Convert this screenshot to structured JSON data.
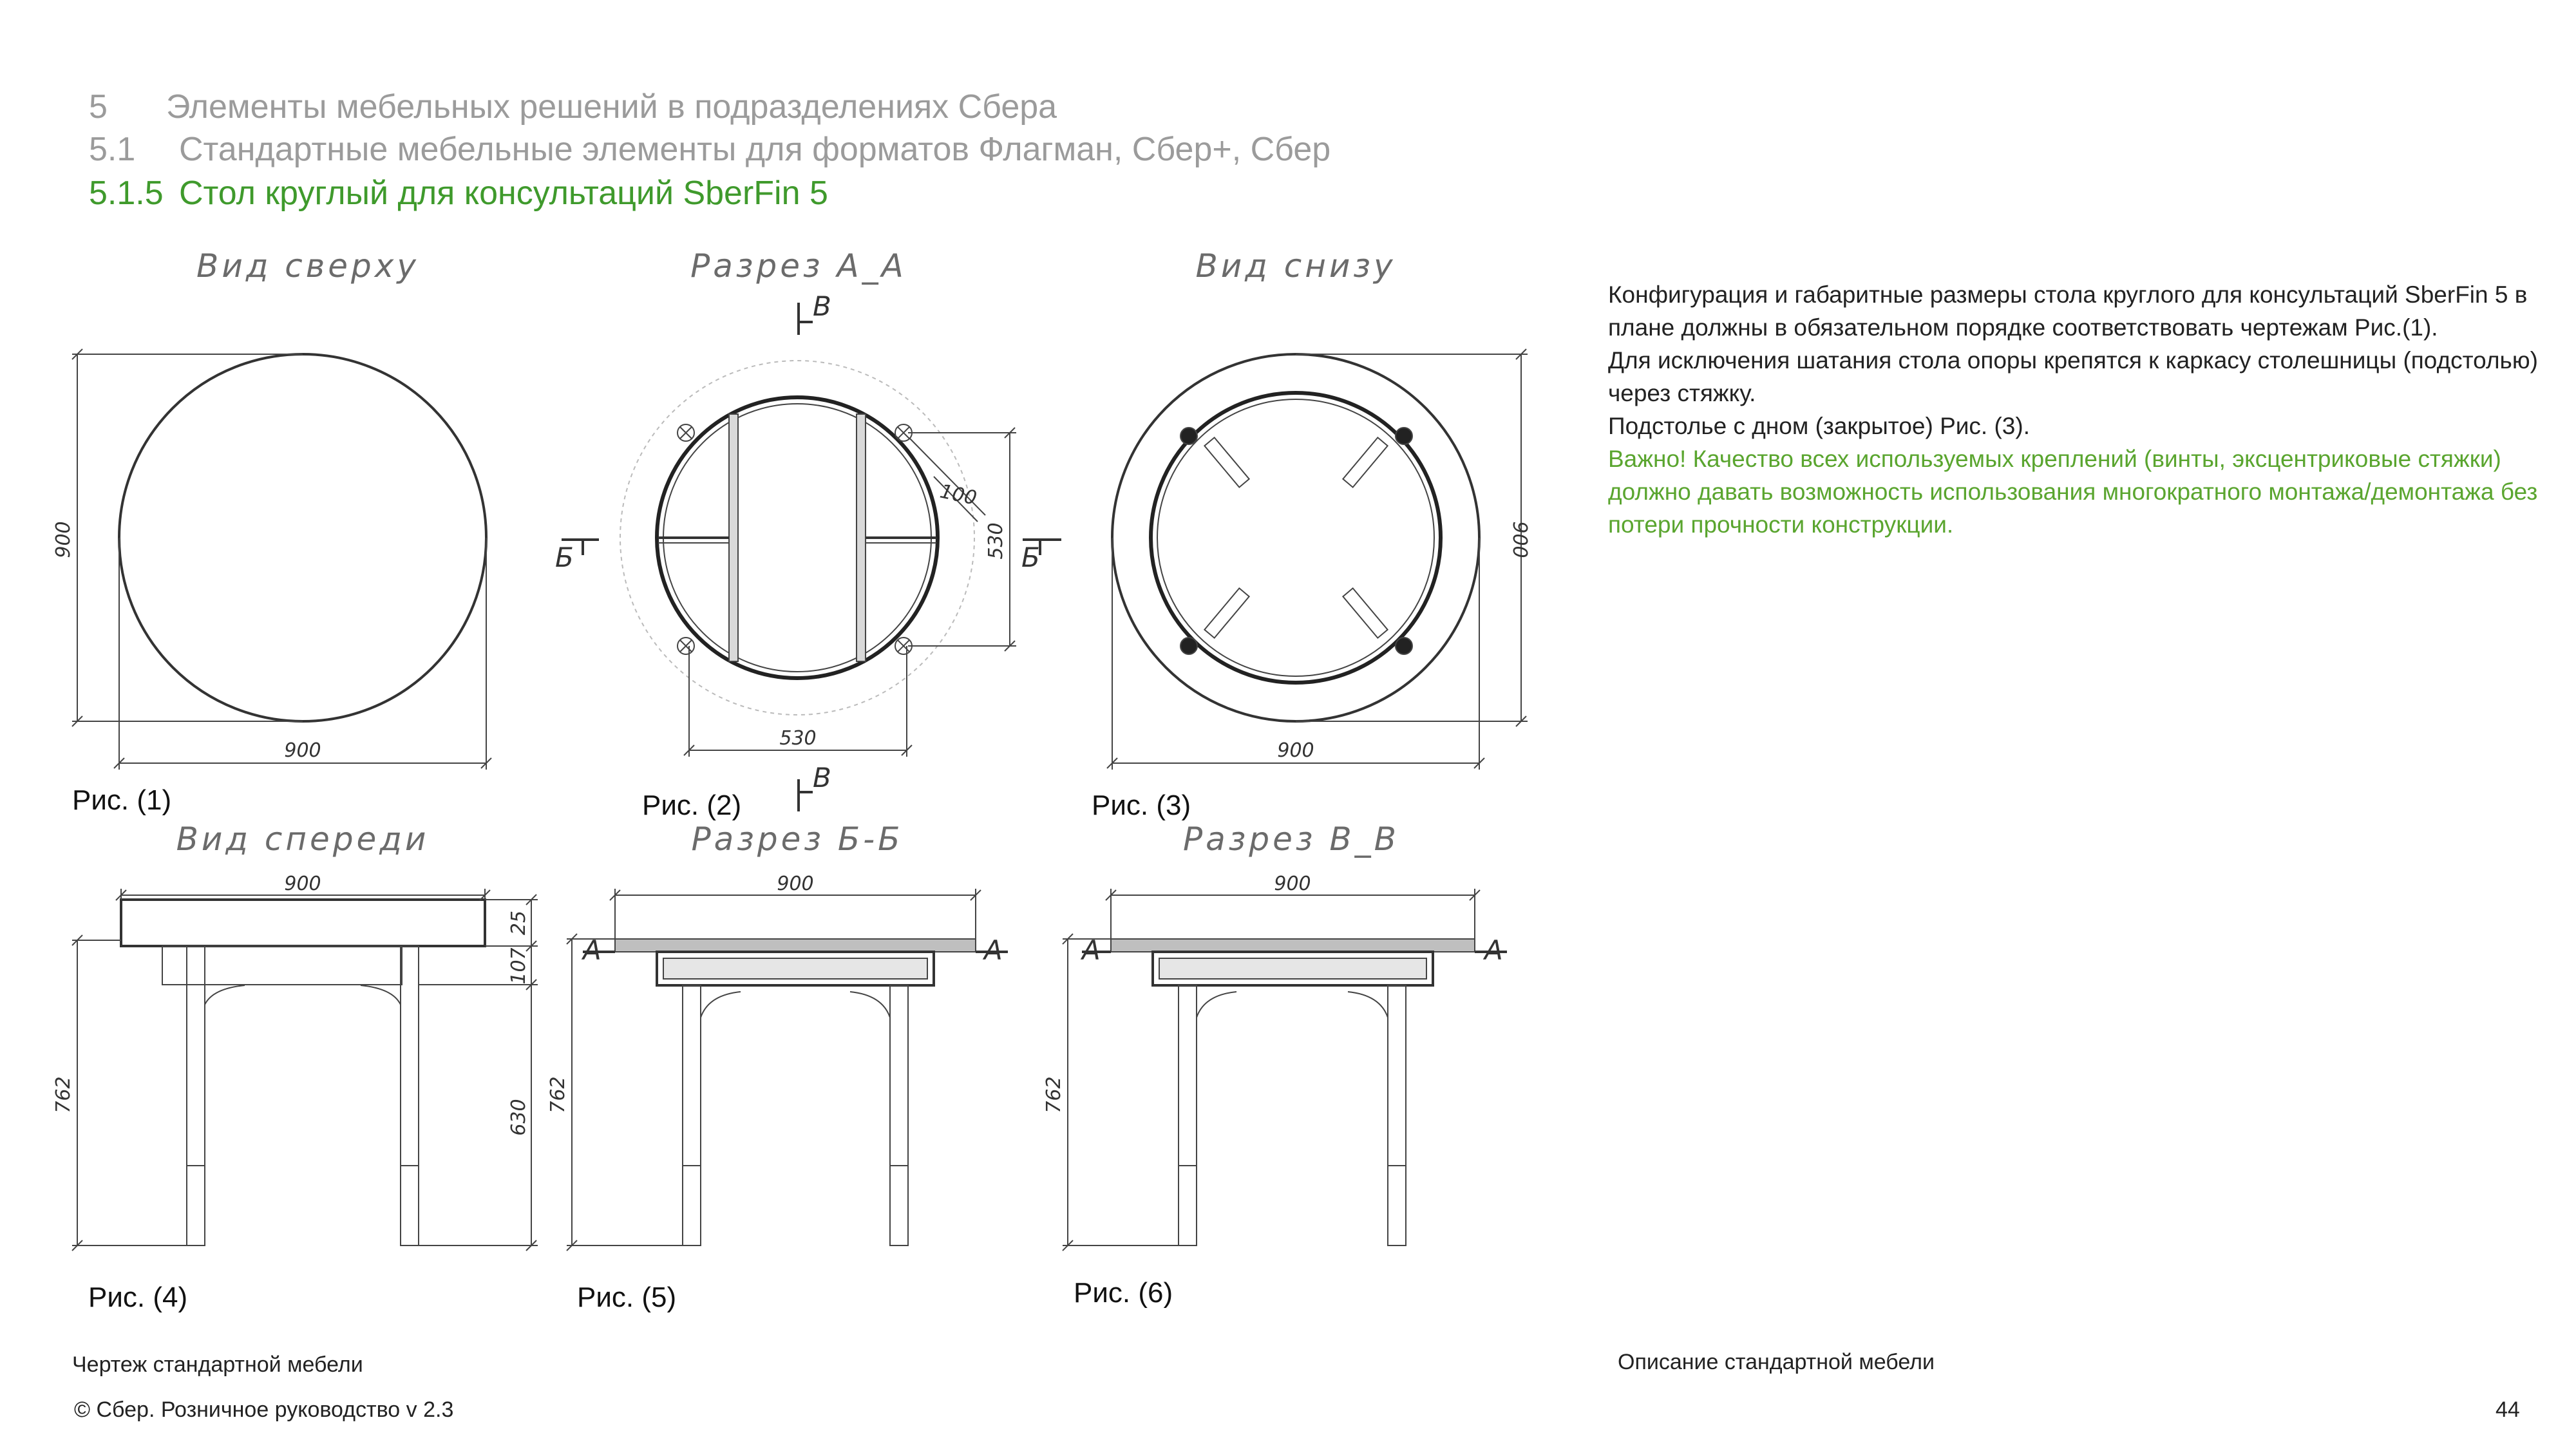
{
  "header": {
    "line1": {
      "num": "5",
      "text": "Элементы мебельных решений в подразделениях Сбера"
    },
    "line2": {
      "num": "5.1",
      "text": "Стандартные мебельные элементы для форматов Флагман, Сбер+, Сбер"
    },
    "line3": {
      "num": "5.1.5",
      "text": "Стол круглый для консультаций SberFin 5"
    }
  },
  "views": {
    "top": "Вид сверху",
    "section_a": "Разрез А_А",
    "bottom": "Вид снизу",
    "front": "Вид спереди",
    "section_b": "Разрез Б-Б",
    "section_v": "Разрез В_В"
  },
  "dims": {
    "d900": "900",
    "d530": "530",
    "d100": "100",
    "d25": "25",
    "d107": "107",
    "d762": "762",
    "d630": "630"
  },
  "section_marks": {
    "v": "В",
    "b": "Б",
    "a": "А"
  },
  "figures": [
    "Рис. (1)",
    "Рис. (2)",
    "Рис. (3)",
    "Рис. (4)",
    "Рис. (5)",
    "Рис. (6)"
  ],
  "description": {
    "p1": "Конфигурация и габаритные размеры стола круглого для консультаций SberFin 5  в плане должны в обязательном порядке соответствовать  чертежам Рис.(1).",
    "p2": "Для исключения шатания стола опоры крепятся к каркасу столешницы (подстолью) через стяжку.",
    "p3": "Подстолье с дном (закрытое) Рис. (3).",
    "warning": "Важно! Качество всех используемых креплений (винты, эксцентриковые стяжки) должно давать возможность использования многократного монтажа/демонтажа без потери прочности конструкции."
  },
  "footer": {
    "left_caption": "Чертеж стандартной мебели",
    "right_caption": "Описание стандартной мебели",
    "copyright": "© Сбер. Розничное руководство  v 2.3",
    "page_number": "44"
  }
}
